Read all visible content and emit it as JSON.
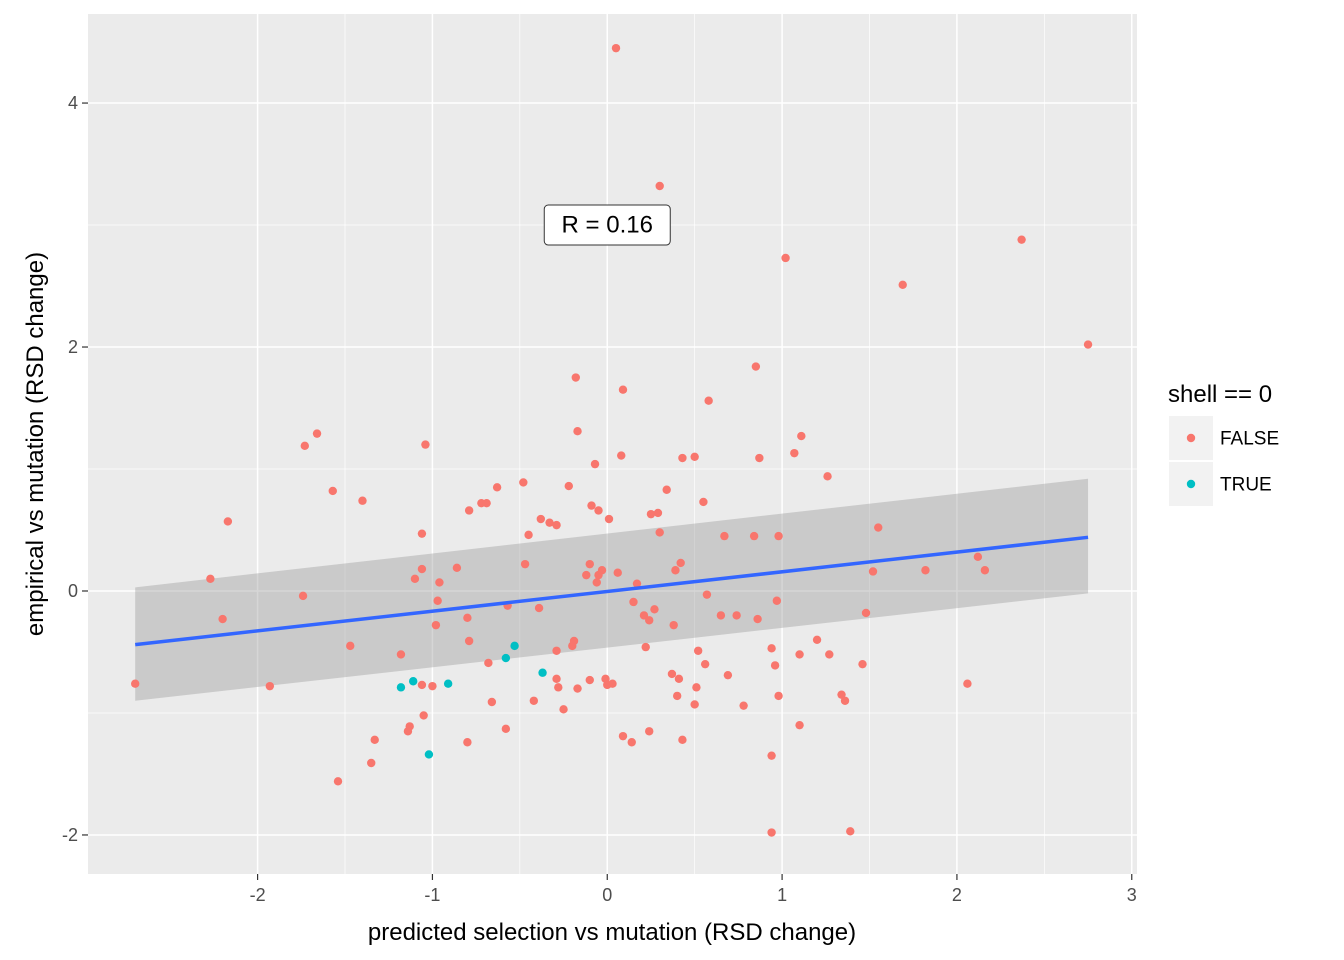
{
  "chart_data": {
    "type": "scatter",
    "xlabel": "predicted selection vs mutation (RSD change)",
    "ylabel": "empirical vs mutation (RSD change)",
    "xlim": [
      -2.97,
      3.03
    ],
    "ylim": [
      -2.32,
      4.73
    ],
    "x_ticks": [
      -2,
      -1,
      0,
      1,
      2,
      3
    ],
    "y_ticks": [
      -2,
      0,
      2,
      4
    ],
    "grid": true,
    "legend": {
      "title": "shell == 0",
      "position": "right",
      "entries": [
        {
          "label": "FALSE",
          "color": "#F8766D"
        },
        {
          "label": "TRUE",
          "color": "#00BFC4"
        }
      ]
    },
    "annotation": {
      "text": "R = 0.16",
      "x": 0.0,
      "y": 3.0
    },
    "trend_line": {
      "x": [
        -2.7,
        2.75
      ],
      "y": [
        -0.44,
        0.44
      ],
      "ci_lower": [
        -0.9,
        -0.02
      ],
      "ci_upper": [
        0.03,
        0.92
      ],
      "color": "#3366FF"
    },
    "series": [
      {
        "name": "FALSE",
        "color": "#F8766D",
        "points": [
          [
            0.05,
            4.45
          ],
          [
            0.3,
            3.32
          ],
          [
            2.37,
            2.88
          ],
          [
            1.02,
            2.73
          ],
          [
            1.69,
            2.51
          ],
          [
            2.75,
            2.02
          ],
          [
            0.85,
            1.84
          ],
          [
            -0.18,
            1.75
          ],
          [
            0.09,
            1.65
          ],
          [
            0.58,
            1.56
          ],
          [
            -1.66,
            1.29
          ],
          [
            -0.17,
            1.31
          ],
          [
            1.11,
            1.27
          ],
          [
            -1.73,
            1.19
          ],
          [
            -1.04,
            1.2
          ],
          [
            0.08,
            1.11
          ],
          [
            0.43,
            1.09
          ],
          [
            0.5,
            1.1
          ],
          [
            0.87,
            1.09
          ],
          [
            1.07,
            1.13
          ],
          [
            -0.07,
            1.04
          ],
          [
            1.26,
            0.94
          ],
          [
            -0.48,
            0.89
          ],
          [
            -0.63,
            0.85
          ],
          [
            -0.22,
            0.86
          ],
          [
            0.34,
            0.83
          ],
          [
            -1.57,
            0.82
          ],
          [
            -1.4,
            0.74
          ],
          [
            -0.72,
            0.72
          ],
          [
            -0.69,
            0.72
          ],
          [
            -0.09,
            0.7
          ],
          [
            0.55,
            0.73
          ],
          [
            -0.79,
            0.66
          ],
          [
            -0.05,
            0.66
          ],
          [
            0.25,
            0.63
          ],
          [
            0.29,
            0.64
          ],
          [
            0.01,
            0.59
          ],
          [
            -0.38,
            0.59
          ],
          [
            -0.33,
            0.56
          ],
          [
            -0.29,
            0.54
          ],
          [
            -2.17,
            0.57
          ],
          [
            1.55,
            0.52
          ],
          [
            -1.06,
            0.47
          ],
          [
            -0.45,
            0.46
          ],
          [
            0.3,
            0.48
          ],
          [
            0.67,
            0.45
          ],
          [
            0.84,
            0.45
          ],
          [
            0.98,
            0.45
          ],
          [
            -0.47,
            0.22
          ],
          [
            -0.1,
            0.22
          ],
          [
            -1.06,
            0.18
          ],
          [
            -0.86,
            0.19
          ],
          [
            0.39,
            0.17
          ],
          [
            -0.12,
            0.13
          ],
          [
            -0.05,
            0.13
          ],
          [
            -0.03,
            0.17
          ],
          [
            0.06,
            0.15
          ],
          [
            2.12,
            0.28
          ],
          [
            1.82,
            0.17
          ],
          [
            1.52,
            0.16
          ],
          [
            2.16,
            0.17
          ],
          [
            0.42,
            0.23
          ],
          [
            -2.27,
            0.1
          ],
          [
            -1.1,
            0.1
          ],
          [
            -0.96,
            0.07
          ],
          [
            -0.06,
            0.07
          ],
          [
            0.17,
            0.06
          ],
          [
            -1.74,
            -0.04
          ],
          [
            0.57,
            -0.03
          ],
          [
            0.15,
            -0.09
          ],
          [
            -0.97,
            -0.08
          ],
          [
            -0.57,
            -0.12
          ],
          [
            -0.39,
            -0.14
          ],
          [
            0.97,
            -0.08
          ],
          [
            0.27,
            -0.15
          ],
          [
            -2.2,
            -0.23
          ],
          [
            -0.8,
            -0.22
          ],
          [
            0.21,
            -0.2
          ],
          [
            0.24,
            -0.24
          ],
          [
            0.65,
            -0.2
          ],
          [
            0.74,
            -0.2
          ],
          [
            0.86,
            -0.23
          ],
          [
            1.48,
            -0.18
          ],
          [
            -0.98,
            -0.28
          ],
          [
            0.38,
            -0.28
          ],
          [
            -0.19,
            -0.41
          ],
          [
            -0.2,
            -0.45
          ],
          [
            1.2,
            -0.4
          ],
          [
            -1.47,
            -0.45
          ],
          [
            0.22,
            -0.46
          ],
          [
            0.94,
            -0.47
          ],
          [
            -0.29,
            -0.49
          ],
          [
            0.52,
            -0.49
          ],
          [
            1.1,
            -0.52
          ],
          [
            1.27,
            -0.52
          ],
          [
            -1.18,
            -0.52
          ],
          [
            -0.79,
            -0.41
          ],
          [
            -0.68,
            -0.59
          ],
          [
            0.56,
            -0.6
          ],
          [
            0.96,
            -0.61
          ],
          [
            1.46,
            -0.6
          ],
          [
            0.37,
            -0.68
          ],
          [
            0.41,
            -0.72
          ],
          [
            0.69,
            -0.69
          ],
          [
            -0.29,
            -0.72
          ],
          [
            -0.1,
            -0.73
          ],
          [
            -0.01,
            -0.72
          ],
          [
            0.0,
            -0.77
          ],
          [
            0.03,
            -0.76
          ],
          [
            -2.7,
            -0.76
          ],
          [
            -1.93,
            -0.78
          ],
          [
            -1.06,
            -0.77
          ],
          [
            -1.0,
            -0.78
          ],
          [
            -0.28,
            -0.79
          ],
          [
            -0.17,
            -0.8
          ],
          [
            0.51,
            -0.79
          ],
          [
            0.4,
            -0.86
          ],
          [
            0.98,
            -0.86
          ],
          [
            1.34,
            -0.85
          ],
          [
            1.36,
            -0.9
          ],
          [
            2.06,
            -0.76
          ],
          [
            -0.42,
            -0.9
          ],
          [
            -0.66,
            -0.91
          ],
          [
            0.5,
            -0.93
          ],
          [
            0.78,
            -0.94
          ],
          [
            -0.25,
            -0.97
          ],
          [
            -1.05,
            -1.02
          ],
          [
            -1.13,
            -1.11
          ],
          [
            -1.14,
            -1.15
          ],
          [
            -0.58,
            -1.13
          ],
          [
            0.09,
            -1.19
          ],
          [
            0.14,
            -1.24
          ],
          [
            0.24,
            -1.15
          ],
          [
            -1.33,
            -1.22
          ],
          [
            -0.8,
            -1.24
          ],
          [
            0.43,
            -1.22
          ],
          [
            1.1,
            -1.1
          ],
          [
            -1.35,
            -1.41
          ],
          [
            0.94,
            -1.35
          ],
          [
            -1.54,
            -1.56
          ],
          [
            0.94,
            -1.98
          ],
          [
            1.39,
            -1.97
          ]
        ]
      },
      {
        "name": "TRUE",
        "color": "#00BFC4",
        "points": [
          [
            -1.18,
            -0.79
          ],
          [
            -1.11,
            -0.74
          ],
          [
            -0.91,
            -0.76
          ],
          [
            -0.58,
            -0.55
          ],
          [
            -0.53,
            -0.45
          ],
          [
            -0.37,
            -0.67
          ],
          [
            -1.02,
            -1.34
          ]
        ]
      }
    ]
  }
}
